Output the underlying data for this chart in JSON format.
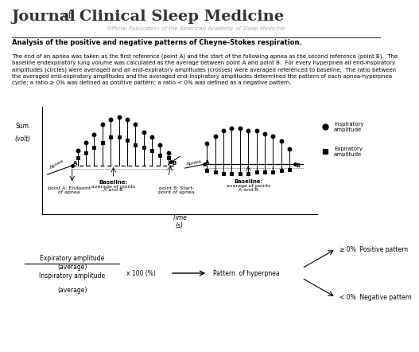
{
  "bg_color": "#ffffff",
  "subtitle": "Official Publication of the American Academy of Sleep Medicine",
  "analysis_title": "Analysis of the positive and negative patterns of Cheyne-Stokes respiration.",
  "body_text": "The end of an apnea was taken as the first reference (point A) and the start of the following apnea as the second reference (point B).  The\nbaseline endexpiratory lung volume was calculated as the average between point A and point B.  For every hyperpnea all end-inspiratory\namplitudes (circles) were averaged and all end-expiratory amplitudes (crosses) were averaged referenced to baseline.  The ratio between\nthe averaged end-expiratory amplitudes and the averaged end-inspiratory amplitudes determined the pattern of each apnea-hyperpnea\ncycle: a ratio ≥ 0% was defined as positive pattern; a ratio < 0% was defined as a negative pattern.",
  "ylabel_sum": "Sum",
  "ylabel_volt": "(volt)",
  "xlabel_time": "Time",
  "xlabel_s": "(s)",
  "pointA_label1": "point A: Endpoint",
  "pointA_label2": "of apnea",
  "pointB_label1": "point B: Start-",
  "pointB_label2": "point of apnea",
  "baseline_label": "Baseline:\naverage of points\nA and B",
  "formula_exp_top": "Expiratory amplitude",
  "formula_exp_bot": "(average)",
  "formula_insp_top": "Inspiratory amplitude",
  "formula_insp_bot": "(average)",
  "formula_x100": "x 100 (%)",
  "formula_arrow": "→",
  "formula_pattern": "Pattern  of hyperpnea",
  "formula_pos": "≥ 0%  Positive pattern",
  "formula_neg": "< 0%  Negative pattern",
  "legend_insp": "Inspiratory\namplitude",
  "legend_exp": "Expiratory\namplitude"
}
